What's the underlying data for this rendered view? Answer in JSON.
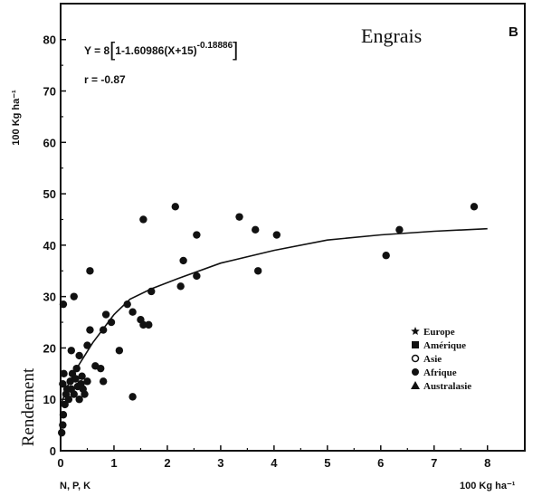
{
  "chart_data": {
    "type": "scatter",
    "title": "Engrais",
    "panel_letter": "B",
    "equation": "Y = 8[1-1.60986(X+15)^-0.18886]",
    "equation_main": "Y = 8",
    "equation_bracket_left": "[",
    "equation_inner": "1-1.60986(X+15)",
    "equation_exponent": "-0.18886",
    "equation_bracket_right": "]",
    "correlation": "r = -0.87",
    "xlabel": "N, P, K",
    "xunit": "100 Kg ha⁻¹",
    "ylabel": "Rendement",
    "yunit": "100 Kg ha⁻¹",
    "xlim": [
      0,
      8.7
    ],
    "ylim": [
      0,
      87
    ],
    "xticks": [
      "0",
      "1",
      "2",
      "3",
      "4",
      "5",
      "6",
      "7",
      "8"
    ],
    "yticks": [
      "0",
      "10",
      "20",
      "30",
      "40",
      "50",
      "60",
      "70",
      "80"
    ],
    "grid": false,
    "legend_position": "lower-right",
    "legend": [
      {
        "label": "Europe",
        "marker": "star"
      },
      {
        "label": "Amérique",
        "marker": "square"
      },
      {
        "label": "Asie",
        "marker": "open-circle"
      },
      {
        "label": "Afrique",
        "marker": "circle"
      },
      {
        "label": "Australasie",
        "marker": "triangle"
      }
    ],
    "points": [
      {
        "x": 0.02,
        "y": 3.5
      },
      {
        "x": 0.04,
        "y": 5
      },
      {
        "x": 0.05,
        "y": 7
      },
      {
        "x": 0.08,
        "y": 9
      },
      {
        "x": 0.1,
        "y": 11
      },
      {
        "x": 0.04,
        "y": 13
      },
      {
        "x": 0.06,
        "y": 15
      },
      {
        "x": 0.12,
        "y": 12
      },
      {
        "x": 0.15,
        "y": 10
      },
      {
        "x": 0.18,
        "y": 13.5
      },
      {
        "x": 0.2,
        "y": 12
      },
      {
        "x": 0.22,
        "y": 15
      },
      {
        "x": 0.25,
        "y": 11
      },
      {
        "x": 0.28,
        "y": 14
      },
      {
        "x": 0.3,
        "y": 16
      },
      {
        "x": 0.32,
        "y": 12.5
      },
      {
        "x": 0.35,
        "y": 10
      },
      {
        "x": 0.38,
        "y": 13
      },
      {
        "x": 0.4,
        "y": 14.5
      },
      {
        "x": 0.42,
        "y": 12
      },
      {
        "x": 0.45,
        "y": 11
      },
      {
        "x": 0.5,
        "y": 13.5
      },
      {
        "x": 0.2,
        "y": 19.5
      },
      {
        "x": 0.35,
        "y": 18.5
      },
      {
        "x": 0.5,
        "y": 20.5
      },
      {
        "x": 0.55,
        "y": 23.5
      },
      {
        "x": 0.65,
        "y": 16.5
      },
      {
        "x": 0.75,
        "y": 16
      },
      {
        "x": 0.8,
        "y": 13.5
      },
      {
        "x": 0.8,
        "y": 23.5
      },
      {
        "x": 0.85,
        "y": 26.5
      },
      {
        "x": 0.95,
        "y": 25
      },
      {
        "x": 1.1,
        "y": 19.5
      },
      {
        "x": 1.25,
        "y": 28.5
      },
      {
        "x": 1.35,
        "y": 27
      },
      {
        "x": 1.35,
        "y": 10.5
      },
      {
        "x": 1.5,
        "y": 25.5
      },
      {
        "x": 1.55,
        "y": 24.5
      },
      {
        "x": 1.65,
        "y": 24.5
      },
      {
        "x": 1.7,
        "y": 31
      },
      {
        "x": 1.55,
        "y": 45
      },
      {
        "x": 2.15,
        "y": 47.5
      },
      {
        "x": 2.25,
        "y": 32
      },
      {
        "x": 2.3,
        "y": 37
      },
      {
        "x": 2.55,
        "y": 34
      },
      {
        "x": 2.55,
        "y": 42
      },
      {
        "x": 3.35,
        "y": 45.5
      },
      {
        "x": 3.65,
        "y": 43
      },
      {
        "x": 3.7,
        "y": 35
      },
      {
        "x": 4.05,
        "y": 42
      },
      {
        "x": 0.05,
        "y": 28.5
      },
      {
        "x": 0.25,
        "y": 30
      },
      {
        "x": 0.55,
        "y": 35
      },
      {
        "x": 6.1,
        "y": 38
      },
      {
        "x": 6.35,
        "y": 43
      },
      {
        "x": 7.75,
        "y": 47.5
      }
    ],
    "fit_curve": [
      {
        "x": 0,
        "y": 8.5
      },
      {
        "x": 0.1,
        "y": 12
      },
      {
        "x": 0.3,
        "y": 16
      },
      {
        "x": 0.6,
        "y": 21
      },
      {
        "x": 1.0,
        "y": 26.5
      },
      {
        "x": 1.3,
        "y": 29.5
      },
      {
        "x": 1.7,
        "y": 31.5
      },
      {
        "x": 2.2,
        "y": 33.5
      },
      {
        "x": 3.0,
        "y": 36.5
      },
      {
        "x": 4.0,
        "y": 39
      },
      {
        "x": 5.0,
        "y": 41
      },
      {
        "x": 6.0,
        "y": 42
      },
      {
        "x": 7.0,
        "y": 42.7
      },
      {
        "x": 8.0,
        "y": 43.2
      }
    ]
  }
}
